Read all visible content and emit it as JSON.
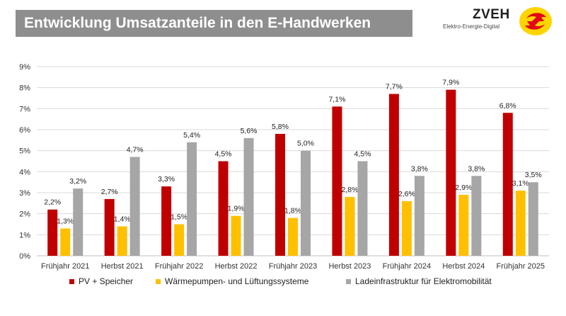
{
  "header": {
    "title": "Entwicklung Umsatzanteile in den E-Handwerken"
  },
  "logo": {
    "name": "ZVEH",
    "tagline": "Elektro-Energie-Digital",
    "brand_yellow": "#ffd500",
    "brand_red": "#e30613"
  },
  "chart_data": {
    "type": "bar",
    "title": "Entwicklung Umsatzanteile in den E-Handwerken",
    "categories": [
      "Frühjahr 2021",
      "Herbst 2021",
      "Frühjahr 2022",
      "Herbst 2022",
      "Frühjahr 2023",
      "Herbst 2023",
      "Frühjahr 2024",
      "Herbst 2024",
      "Frühjahr 2025"
    ],
    "series": [
      {
        "name": "PV + Speicher",
        "color": "#c00000",
        "values": [
          2.2,
          2.7,
          3.3,
          4.5,
          5.8,
          7.1,
          7.7,
          7.9,
          6.8
        ],
        "labels": [
          "2,2%",
          "2,7%",
          "3,3%",
          "4,5%",
          "5,8%",
          "7,1%",
          "7,7%",
          "7,9%",
          "6,8%"
        ]
      },
      {
        "name": "Wärmepumpen- und Lüftungssysteme",
        "color": "#ffc000",
        "values": [
          1.3,
          1.4,
          1.5,
          1.9,
          1.8,
          2.8,
          2.6,
          2.9,
          3.1
        ],
        "labels": [
          "1,3%",
          "1,4%",
          "1,5%",
          "1,9%",
          "1,8%",
          "2,8%",
          "2,6%",
          "2,9%",
          "3,1%"
        ]
      },
      {
        "name": "Ladeinfrastruktur für Elektromobilität",
        "color": "#a6a6a6",
        "values": [
          3.2,
          4.7,
          5.4,
          5.6,
          5.0,
          4.5,
          3.8,
          3.8,
          3.5
        ],
        "labels": [
          "3,2%",
          "4,7%",
          "5,4%",
          "5,6%",
          "5,0%",
          "4,5%",
          "3,8%",
          "3,8%",
          "3,5%"
        ]
      }
    ],
    "ylim": [
      0,
      9
    ],
    "yticks": [
      "0%",
      "1%",
      "2%",
      "3%",
      "4%",
      "5%",
      "6%",
      "7%",
      "8%",
      "9%"
    ],
    "grid": true,
    "legend_position": "bottom",
    "xlabel": "",
    "ylabel": ""
  }
}
